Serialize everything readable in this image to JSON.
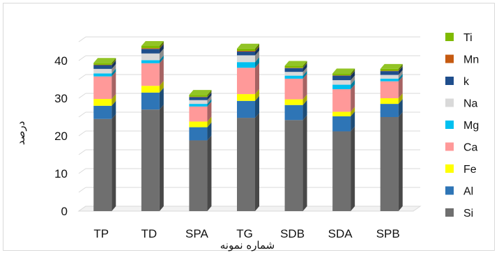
{
  "chart_data": {
    "type": "bar",
    "stacked": true,
    "three_d": true,
    "xlabel": "شماره نمونه",
    "ylabel": "درصد",
    "ylim": [
      0,
      45
    ],
    "yticks": [
      0,
      10,
      20,
      30,
      40
    ],
    "legend_position": "right",
    "categories": [
      "TP",
      "TD",
      "SPA",
      "TG",
      "SDB",
      "SDA",
      "SPB"
    ],
    "series": [
      {
        "name": "Si",
        "color": "#6f6f6f",
        "values": [
          24.5,
          27,
          18.8,
          24.8,
          24.2,
          21.2,
          25
        ]
      },
      {
        "name": "Al",
        "color": "#2e75b6",
        "values": [
          3.5,
          4.5,
          3.5,
          4.5,
          4,
          4,
          3.5
        ]
      },
      {
        "name": "Fe",
        "color": "#ffff00",
        "values": [
          1.8,
          1.8,
          1.5,
          1.8,
          1.5,
          1.2,
          1.5
        ]
      },
      {
        "name": "Ca",
        "color": "#ff9999",
        "values": [
          6,
          6,
          4,
          7,
          5.5,
          6,
          4.5
        ]
      },
      {
        "name": "Mg",
        "color": "#00c0f0",
        "values": [
          0.8,
          0.8,
          0.7,
          1.5,
          0.8,
          1.2,
          0.7
        ]
      },
      {
        "name": "Na",
        "color": "#d9d9d9",
        "values": [
          1.2,
          1.8,
          1,
          1.8,
          1,
          1.2,
          1
        ]
      },
      {
        "name": "k",
        "color": "#1f4e8c",
        "values": [
          1,
          1.2,
          0.8,
          1,
          1,
          1.2,
          1
        ]
      },
      {
        "name": "Mn",
        "color": "#c55a11",
        "values": [
          0.1,
          0.2,
          0.1,
          0.2,
          0.1,
          0.1,
          0.1
        ]
      },
      {
        "name": "Ti",
        "color": "#7fba00",
        "values": [
          0.5,
          0.6,
          0.5,
          0.6,
          0.5,
          0.5,
          0.5
        ]
      }
    ]
  }
}
